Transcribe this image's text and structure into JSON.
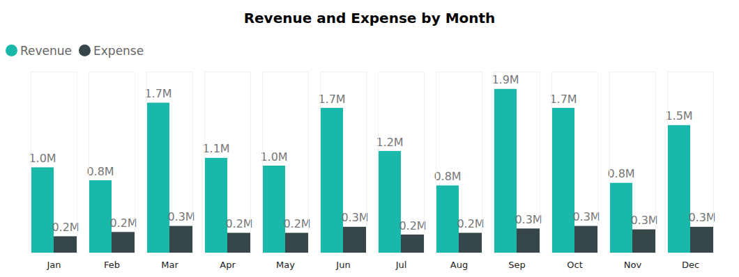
{
  "chart_data": {
    "type": "bar",
    "title": "Revenue and Expense by Month",
    "categories": [
      "Jan",
      "Feb",
      "Mar",
      "Apr",
      "May",
      "Jun",
      "Jul",
      "Aug",
      "Sep",
      "Oct",
      "Nov",
      "Dec"
    ],
    "series": [
      {
        "name": "Revenue",
        "color": "#1ab8aa",
        "values": [
          0.99,
          0.84,
          1.74,
          1.1,
          1.01,
          1.68,
          1.18,
          0.78,
          1.9,
          1.68,
          0.81,
          1.48
        ],
        "value_labels": [
          "1.0M",
          "0.8M",
          "1.7M",
          "1.1M",
          "1.0M",
          "1.7M",
          "1.2M",
          "0.8M",
          "1.9M",
          "1.7M",
          "0.8M",
          "1.5M"
        ]
      },
      {
        "name": "Expense",
        "color": "#374649",
        "values": [
          0.19,
          0.24,
          0.31,
          0.23,
          0.23,
          0.3,
          0.21,
          0.23,
          0.28,
          0.31,
          0.27,
          0.3
        ],
        "value_labels": [
          "0.2M",
          "0.2M",
          "0.3M",
          "0.2M",
          "0.2M",
          "0.3M",
          "0.2M",
          "0.2M",
          "0.3M",
          "0.3M",
          "0.3M",
          "0.3M"
        ]
      }
    ],
    "ylim": [
      0,
      2.1
    ],
    "legend": "top-left",
    "data_labels": true,
    "tick_labels": "x",
    "grid": false
  }
}
